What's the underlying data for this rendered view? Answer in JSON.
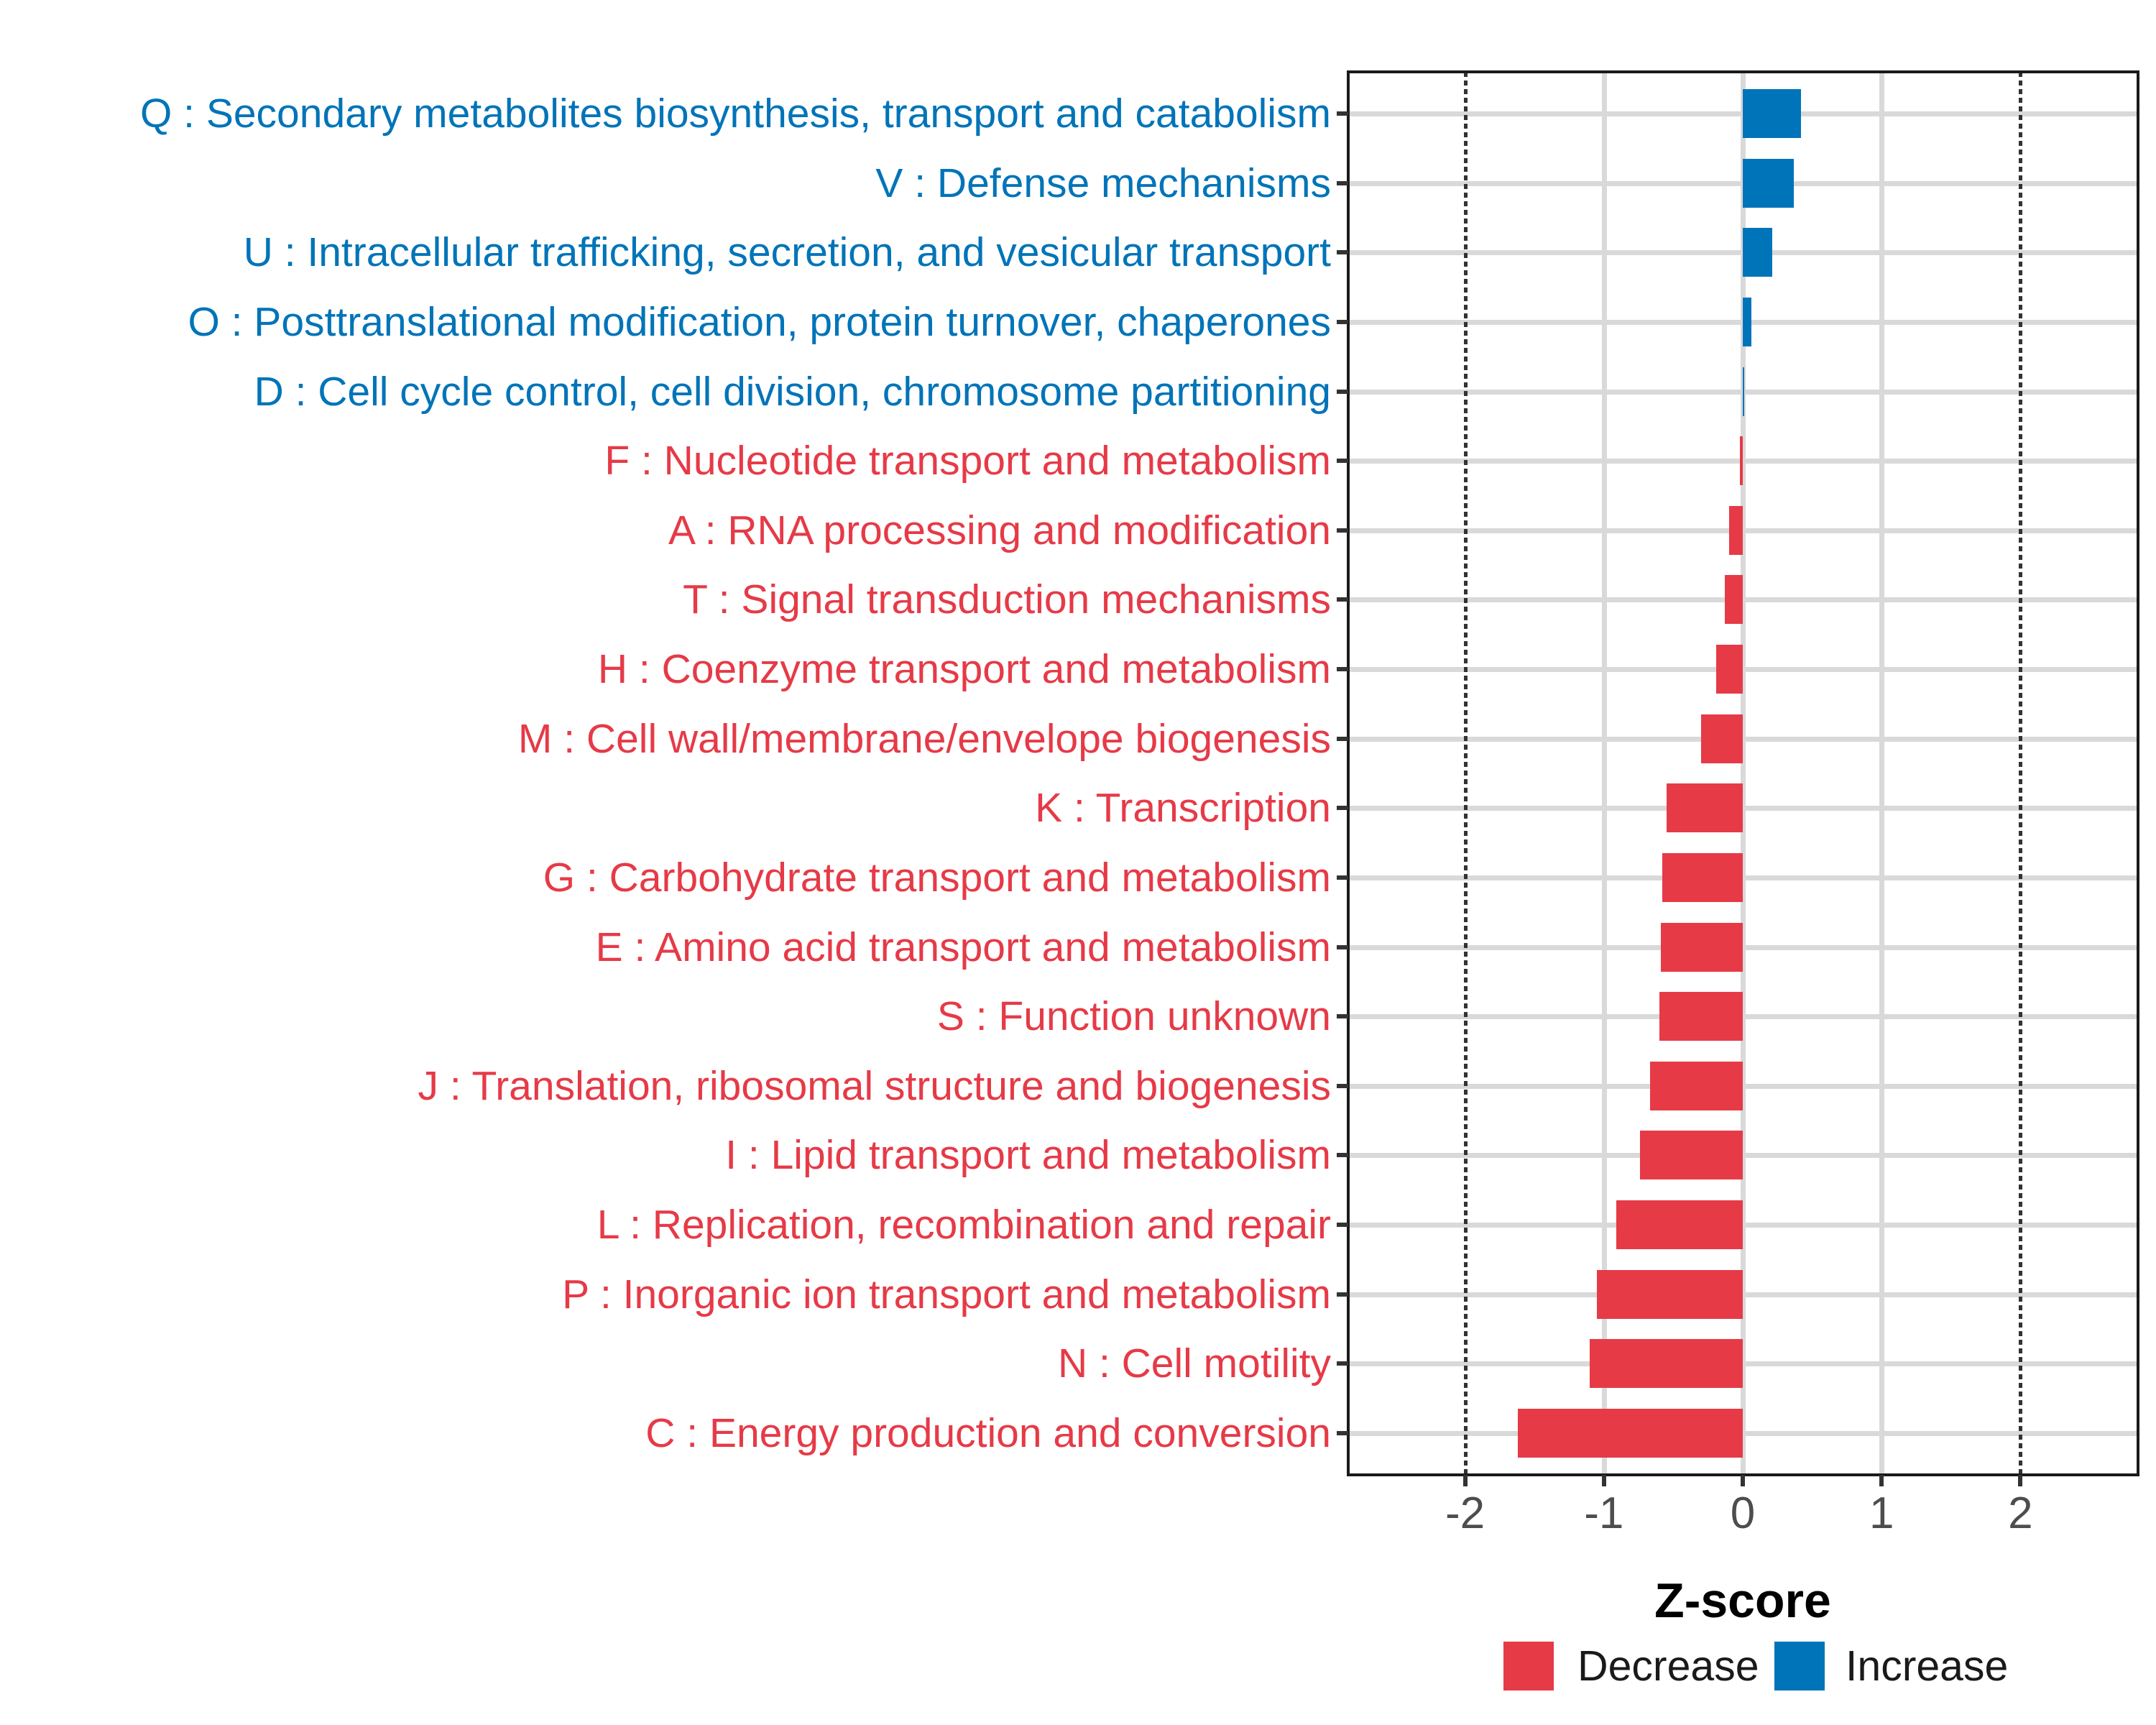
{
  "chart_data": {
    "type": "bar",
    "orientation": "horizontal",
    "title": "",
    "xlabel": "Z-score",
    "ylabel": "",
    "xlim": [
      -2.85,
      2.85
    ],
    "xticks": [
      -2,
      -1,
      0,
      1,
      2
    ],
    "threshold_lines": [
      -2,
      2
    ],
    "grid": "major",
    "legend_position": "bottom-right",
    "series": [
      {
        "category": "Q : Secondary metabolites biosynthesis, transport and catabolism",
        "value": 0.42,
        "group": "Increase"
      },
      {
        "category": "V : Defense mechanisms",
        "value": 0.37,
        "group": "Increase"
      },
      {
        "category": "U : Intracellular trafficking, secretion, and vesicular transport",
        "value": 0.21,
        "group": "Increase"
      },
      {
        "category": "O : Posttranslational modification, protein turnover, chaperones",
        "value": 0.06,
        "group": "Increase"
      },
      {
        "category": "D : Cell cycle control, cell division, chromosome partitioning",
        "value": 0.01,
        "group": "Increase"
      },
      {
        "category": "F : Nucleotide transport and metabolism",
        "value": -0.02,
        "group": "Decrease"
      },
      {
        "category": "A : RNA processing and modification",
        "value": -0.1,
        "group": "Decrease"
      },
      {
        "category": "T : Signal transduction mechanisms",
        "value": -0.13,
        "group": "Decrease"
      },
      {
        "category": "H : Coenzyme transport and metabolism",
        "value": -0.19,
        "group": "Decrease"
      },
      {
        "category": "M : Cell wall/membrane/envelope biogenesis",
        "value": -0.3,
        "group": "Decrease"
      },
      {
        "category": "K : Transcription",
        "value": -0.55,
        "group": "Decrease"
      },
      {
        "category": "G : Carbohydrate transport and metabolism",
        "value": -0.58,
        "group": "Decrease"
      },
      {
        "category": "E : Amino acid transport and metabolism",
        "value": -0.59,
        "group": "Decrease"
      },
      {
        "category": "S : Function unknown",
        "value": -0.6,
        "group": "Decrease"
      },
      {
        "category": "J : Translation, ribosomal structure and biogenesis",
        "value": -0.67,
        "group": "Decrease"
      },
      {
        "category": "I : Lipid transport and metabolism",
        "value": -0.74,
        "group": "Decrease"
      },
      {
        "category": "L : Replication, recombination and repair",
        "value": -0.91,
        "group": "Decrease"
      },
      {
        "category": "P : Inorganic ion transport and metabolism",
        "value": -1.05,
        "group": "Decrease"
      },
      {
        "category": "N : Cell motility",
        "value": -1.1,
        "group": "Decrease"
      },
      {
        "category": "C : Energy production and conversion",
        "value": -1.62,
        "group": "Decrease"
      }
    ],
    "legend": [
      {
        "label": "Decrease",
        "color": "#E63A47"
      },
      {
        "label": "Increase",
        "color": "#0074B8"
      }
    ]
  },
  "colors": {
    "increase": "#0074B8",
    "decrease": "#E63A47",
    "grid": "#D9D9D9",
    "panel_border": "#1A1A1A",
    "tick_text": "#4D4D4D",
    "threshold_line": "#333333",
    "background": "#FFFFFF"
  }
}
